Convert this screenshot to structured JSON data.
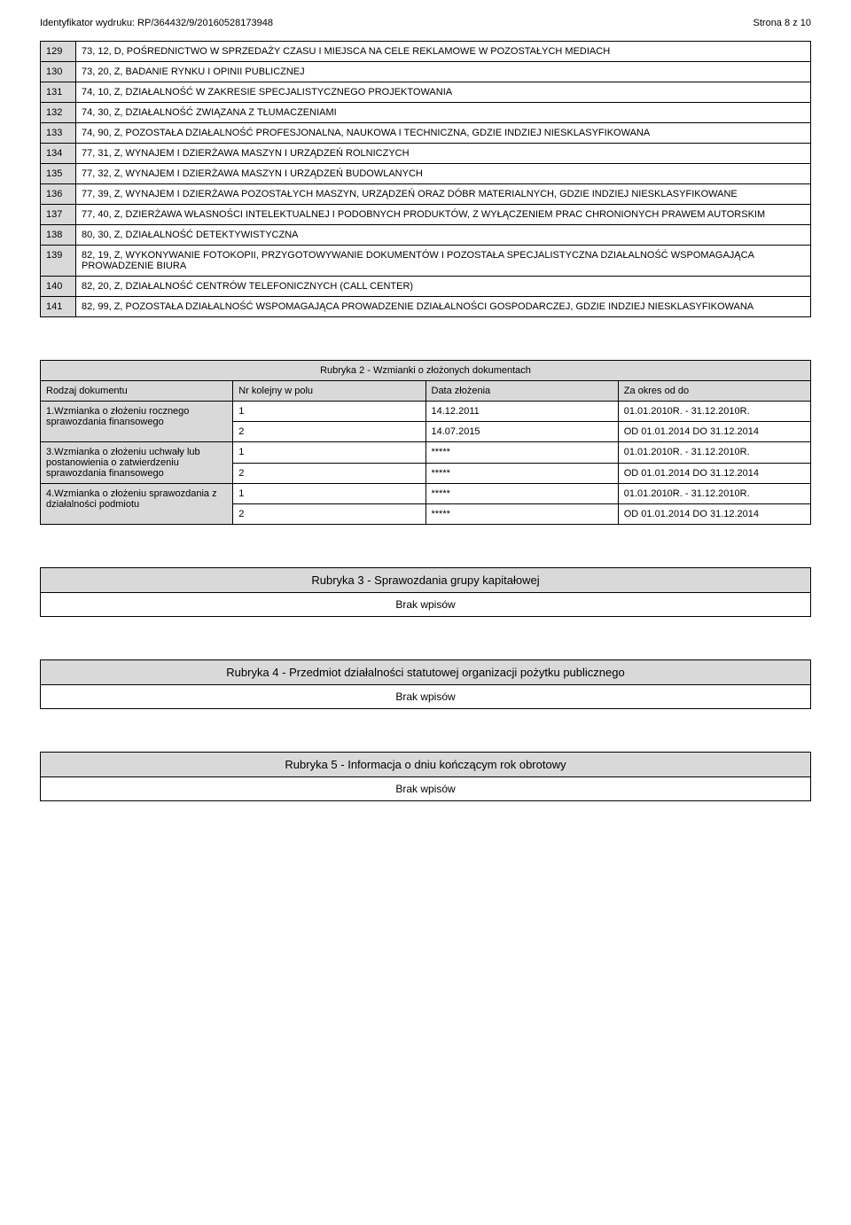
{
  "header": {
    "idLabel": "Identyfikator wydruku:",
    "idValue": "RP/364432/9/20160528173948",
    "pageLabel": "Strona",
    "pageNum": "8",
    "pageOf": "z",
    "pageTotal": "10"
  },
  "activities": [
    {
      "n": "129",
      "t": "73, 12, D, POŚREDNICTWO W SPRZEDAŻY CZASU I MIEJSCA NA CELE REKLAMOWE W POZOSTAŁYCH MEDIACH"
    },
    {
      "n": "130",
      "t": "73, 20, Z, BADANIE RYNKU I OPINII PUBLICZNEJ"
    },
    {
      "n": "131",
      "t": "74, 10, Z, DZIAŁALNOŚĆ W ZAKRESIE SPECJALISTYCZNEGO PROJEKTOWANIA"
    },
    {
      "n": "132",
      "t": "74, 30, Z, DZIAŁALNOŚĆ ZWIĄZANA Z TŁUMACZENIAMI"
    },
    {
      "n": "133",
      "t": "74, 90, Z, POZOSTAŁA DZIAŁALNOŚĆ PROFESJONALNA, NAUKOWA I TECHNICZNA, GDZIE INDZIEJ NIESKLASYFIKOWANA"
    },
    {
      "n": "134",
      "t": "77, 31, Z, WYNAJEM I DZIERŻAWA MASZYN I URZĄDZEŃ ROLNICZYCH"
    },
    {
      "n": "135",
      "t": "77, 32, Z, WYNAJEM I DZIERŻAWA MASZYN I URZĄDZEŃ BUDOWLANYCH"
    },
    {
      "n": "136",
      "t": "77, 39, Z, WYNAJEM I DZIERŻAWA POZOSTAŁYCH MASZYN, URZĄDZEŃ ORAZ DÓBR MATERIALNYCH, GDZIE INDZIEJ NIESKLASYFIKOWANE"
    },
    {
      "n": "137",
      "t": "77, 40, Z, DZIERŻAWA WŁASNOŚCI INTELEKTUALNEJ I PODOBNYCH PRODUKTÓW, Z WYŁĄCZENIEM PRAC CHRONIONYCH PRAWEM AUTORSKIM"
    },
    {
      "n": "138",
      "t": "80, 30, Z, DZIAŁALNOŚĆ DETEKTYWISTYCZNA"
    },
    {
      "n": "139",
      "t": "82, 19, Z, WYKONYWANIE FOTOKOPII, PRZYGOTOWYWANIE DOKUMENTÓW I POZOSTAŁA SPECJALISTYCZNA DZIAŁALNOŚĆ WSPOMAGAJĄCA PROWADZENIE BIURA"
    },
    {
      "n": "140",
      "t": "82, 20, Z, DZIAŁALNOŚĆ CENTRÓW TELEFONICZNYCH (CALL CENTER)"
    },
    {
      "n": "141",
      "t": "82, 99, Z, POZOSTAŁA DZIAŁALNOŚĆ WSPOMAGAJĄCA PROWADZENIE DZIAŁALNOŚCI GOSPODARCZEJ, GDZIE INDZIEJ NIESKLASYFIKOWANA"
    }
  ],
  "rubryka2": {
    "title": "Rubryka 2 - Wzmianki o złożonych dokumentach",
    "headers": {
      "c1": "Rodzaj dokumentu",
      "c2": "Nr kolejny w polu",
      "c3": "Data złożenia",
      "c4": "Za okres od do"
    },
    "groups": [
      {
        "label": "1.Wzmianka o złożeniu rocznego sprawozdania finansowego",
        "rows": [
          {
            "nr": "1",
            "date": "14.12.2011",
            "period": "01.01.2010R. - 31.12.2010R."
          },
          {
            "nr": "2",
            "date": "14.07.2015",
            "period": "OD 01.01.2014 DO 31.12.2014"
          }
        ]
      },
      {
        "label": "3.Wzmianka o złożeniu uchwały lub postanowienia o zatwierdzeniu sprawozdania finansowego",
        "rows": [
          {
            "nr": "1",
            "date": "*****",
            "period": "01.01.2010R. - 31.12.2010R."
          },
          {
            "nr": "2",
            "date": "*****",
            "period": "OD 01.01.2014 DO 31.12.2014"
          }
        ]
      },
      {
        "label": "4.Wzmianka o złożeniu sprawozdania z działalności podmiotu",
        "rows": [
          {
            "nr": "1",
            "date": "*****",
            "period": "01.01.2010R. - 31.12.2010R."
          },
          {
            "nr": "2",
            "date": "*****",
            "period": "OD 01.01.2014 DO 31.12.2014"
          }
        ]
      }
    ]
  },
  "rubryka3": {
    "title": "Rubryka 3 - Sprawozdania grupy kapitałowej",
    "empty": "Brak wpisów"
  },
  "rubryka4": {
    "title": "Rubryka 4 - Przedmiot działalności statutowej organizacji pożytku publicznego",
    "empty": "Brak wpisów"
  },
  "rubryka5": {
    "title": "Rubryka 5 - Informacja o dniu kończącym rok obrotowy",
    "empty": "Brak wpisów"
  },
  "style": {
    "grey": "#d9d9d9",
    "pageWidth": 960,
    "pageHeight": 1382,
    "baseFontSize": 11,
    "titleFontSize": 13
  }
}
